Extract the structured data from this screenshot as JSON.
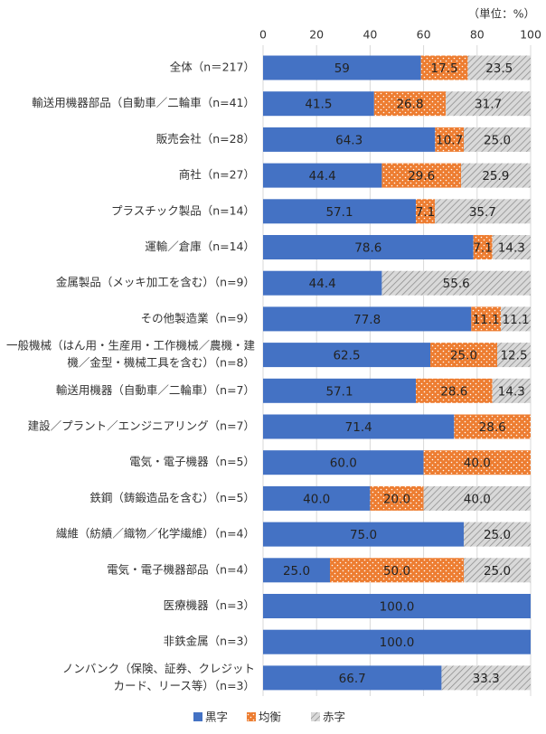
{
  "chart_data": {
    "type": "stacked-barh",
    "unit_label": "（単位：%）",
    "categories": [
      "全体（n＝217）",
      "輸送用機器部品（自動車／二輪車（n=41）",
      "販売会社（n=28）",
      "商社（n=27）",
      "プラスチック製品（n=14）",
      "運輸／倉庫（n=14）",
      "金属製品（メッキ加工を含む）（n=9）",
      "その他製造業（n=9）",
      [
        "一般機械（はん用・生産用・工作機械／農機・建",
        "機／金型・機械工具を含む）（n=8）"
      ],
      "輸送用機器（自動車／二輪車）（n=7）",
      "建設／プラント／エンジニアリング（n=7）",
      "電気・電子機器（n=5）",
      "鉄鋼（鋳鍛造品を含む）（n=5）",
      "繊維（紡績／織物／化学繊維）（n=4）",
      "電気・電子機器部品（n=4）",
      "医療機器（n=3）",
      "非鉄金属（n=3）",
      [
        "ノンバンク（保険、証券、クレジット",
        "カード、リース等）（n=3）"
      ]
    ],
    "series": [
      {
        "name": "黒字",
        "color": "#4472c4",
        "pattern": "solid",
        "values": [
          59,
          41.5,
          64.3,
          44.4,
          57.1,
          78.6,
          44.4,
          77.8,
          62.5,
          57.1,
          71.4,
          60.0,
          40.0,
          75.0,
          25.0,
          100.0,
          100.0,
          66.7
        ],
        "value_labels": [
          "59",
          "41.5",
          "64.3",
          "44.4",
          "57.1",
          "78.6",
          "44.4",
          "77.8",
          "62.5",
          "57.1",
          "71.4",
          "60.0",
          "40.0",
          "75.0",
          "25.0",
          "100.0",
          "100.0",
          "66.7"
        ]
      },
      {
        "name": "均衡",
        "color": "#ed7d31",
        "pattern": "dots",
        "values": [
          17.5,
          26.8,
          10.7,
          29.6,
          7.1,
          7.1,
          null,
          11.1,
          25.0,
          28.6,
          28.6,
          40.0,
          20.0,
          null,
          50.0,
          null,
          null,
          null
        ],
        "value_labels": [
          "17.5",
          "26.8",
          "10.7",
          "29.6",
          "7.1",
          "7.1",
          null,
          "11.1",
          "25.0",
          "28.6",
          "28.6",
          "40.0",
          "20.0",
          null,
          "50.0",
          null,
          null,
          null
        ]
      },
      {
        "name": "赤字",
        "color": "#bfbfbf",
        "pattern": "hatch",
        "values": [
          23.5,
          31.7,
          25.0,
          25.9,
          35.7,
          14.3,
          55.6,
          11.1,
          12.5,
          14.3,
          null,
          null,
          40.0,
          25.0,
          25.0,
          null,
          null,
          33.3
        ],
        "value_labels": [
          "23.5",
          "31.7",
          "25.0",
          "25.9",
          "35.7",
          "14.3",
          "55.6",
          "11.1",
          "12.5",
          "14.3",
          null,
          null,
          "40.0",
          "25.0",
          "25.0",
          null,
          null,
          "33.3"
        ]
      }
    ],
    "xlim": [
      0,
      100
    ],
    "xticks": [
      0,
      20,
      40,
      60,
      80,
      100
    ],
    "grid": true
  }
}
